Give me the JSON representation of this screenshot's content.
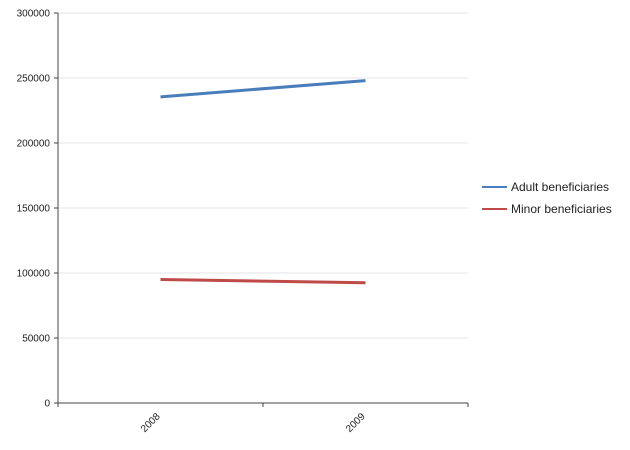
{
  "chart_data": {
    "type": "line",
    "title": "",
    "xlabel": "",
    "ylabel": "",
    "categories": [
      "2008",
      "2009"
    ],
    "ylim": [
      0,
      300000
    ],
    "yticks": [
      0,
      50000,
      100000,
      150000,
      200000,
      250000,
      300000
    ],
    "grid": "horizontal",
    "legend_position": "right",
    "series": [
      {
        "name": "Adult beneficiaries",
        "color": "#4a7ebb",
        "values": [
          235500,
          248000
        ]
      },
      {
        "name": "Minor beneficiaries",
        "color": "#be4b48",
        "values": [
          95000,
          92500
        ]
      }
    ]
  }
}
